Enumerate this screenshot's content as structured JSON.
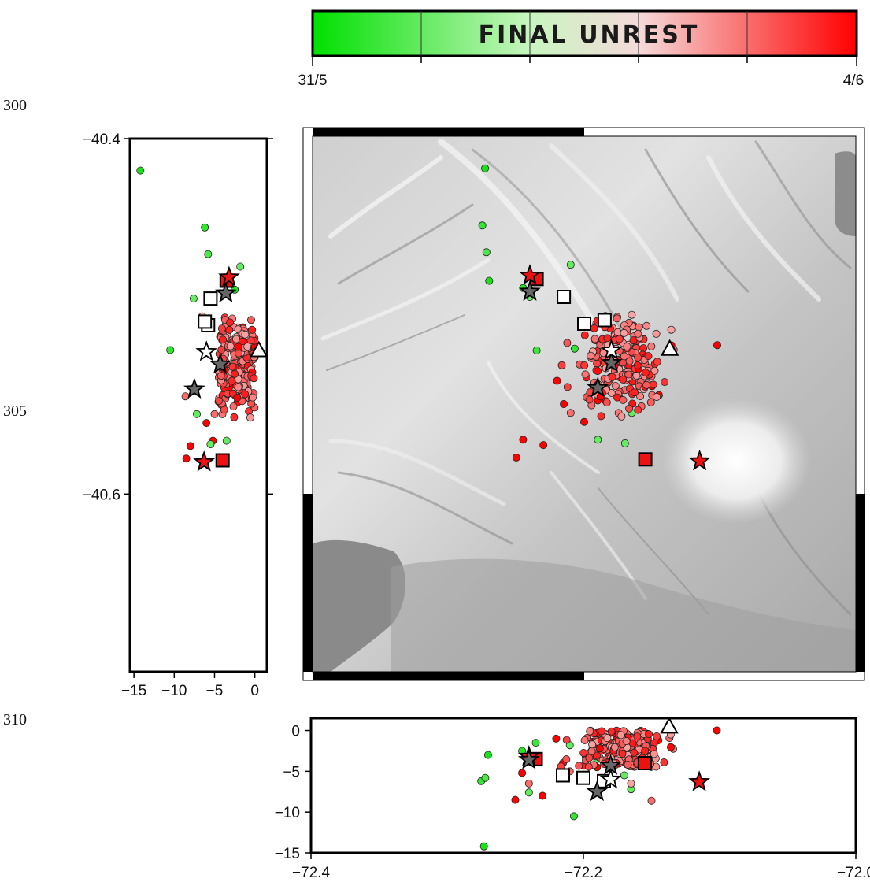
{
  "margin_numbers": [
    "300",
    "305",
    "310"
  ],
  "colorbar": {
    "title": "FINAL UNREST",
    "start_label": "31/5",
    "end_label": "4/6",
    "colors": [
      "#00e000",
      "#c8f5c0",
      "#f5dada",
      "#ff0000"
    ]
  },
  "chart_data": {
    "type": "scatter",
    "panels": {
      "map": {
        "xlim": [
          -72.4,
          -72.0
        ],
        "ylim": [
          -40.7,
          -40.4
        ],
        "basemap": "shaded relief"
      },
      "lat_section": {
        "xlim": [
          -15.5,
          1.5
        ],
        "ylim": [
          -40.7,
          -40.4
        ],
        "xticks": [
          "-15",
          "-10",
          "-5",
          "0"
        ],
        "yticks": [
          "-40.4",
          "-40.6"
        ]
      },
      "lon_section": {
        "xlim": [
          -72.4,
          -72.0
        ],
        "ylim": [
          -15,
          1.5
        ],
        "xticks": [
          "-72.4",
          "-72.2",
          "-72.0"
        ],
        "yticks": [
          "0",
          "-5",
          "-10",
          "-15"
        ]
      }
    },
    "color_scale": {
      "min": 0,
      "max": 1,
      "start": "31/5",
      "end": "4/6"
    },
    "stars": [
      {
        "lon": -72.24,
        "lat": -40.478,
        "depth": -3.2,
        "color": "#ee1111"
      },
      {
        "lon": -72.24,
        "lat": -40.487,
        "depth": -3.6,
        "color": "#666666"
      },
      {
        "lon": -72.18,
        "lat": -40.527,
        "depth": -4.3,
        "color": "#666666"
      },
      {
        "lon": -72.19,
        "lat": -40.541,
        "depth": -7.5,
        "color": "#666666"
      },
      {
        "lon": -72.115,
        "lat": -40.582,
        "depth": -6.3,
        "color": "#ee1111"
      },
      {
        "lon": -72.18,
        "lat": -40.52,
        "depth": -6.0,
        "color": "#ffffff"
      }
    ],
    "squares": [
      {
        "lon": -72.235,
        "lat": -40.48,
        "depth": -3.5,
        "color": "#ee1111"
      },
      {
        "lon": -72.215,
        "lat": -40.49,
        "depth": -5.5,
        "color": "#ffffff"
      },
      {
        "lon": -72.2,
        "lat": -40.505,
        "depth": -5.8,
        "color": "#ffffff"
      },
      {
        "lon": -72.185,
        "lat": -40.503,
        "depth": -6.2,
        "color": "#ffffff"
      },
      {
        "lon": -72.155,
        "lat": -40.581,
        "depth": -4.0,
        "color": "#ee1111"
      }
    ],
    "triangles": [
      {
        "lon": -72.137,
        "lat": -40.519,
        "depth": 0.5,
        "color": "#ffffff"
      }
    ],
    "earthquakes": [
      {
        "lon": -72.273,
        "lat": -40.418,
        "depth": -14.2,
        "t": 0.05
      },
      {
        "lon": -72.275,
        "lat": -40.45,
        "depth": -6.2,
        "t": 0.1
      },
      {
        "lon": -72.272,
        "lat": -40.465,
        "depth": -5.8,
        "t": 0.15
      },
      {
        "lon": -72.27,
        "lat": -40.481,
        "depth": -3.0,
        "t": 0.05
      },
      {
        "lon": -72.245,
        "lat": -40.485,
        "depth": -2.5,
        "t": 0.08
      },
      {
        "lon": -72.24,
        "lat": -40.49,
        "depth": -7.6,
        "t": 0.2
      },
      {
        "lon": -72.235,
        "lat": -40.52,
        "depth": -1.5,
        "t": 0.12
      },
      {
        "lon": -72.21,
        "lat": -40.472,
        "depth": -1.8,
        "t": 0.2
      },
      {
        "lon": -72.207,
        "lat": -40.519,
        "depth": -10.5,
        "t": 0.1
      },
      {
        "lon": -72.165,
        "lat": -40.555,
        "depth": -7.2,
        "t": 0.2
      },
      {
        "lon": -72.19,
        "lat": -40.57,
        "depth": -3.5,
        "t": 0.2
      },
      {
        "lon": -72.165,
        "lat": -40.5,
        "depth": -6.5,
        "t": 0.7
      },
      {
        "lon": -72.15,
        "lat": -40.545,
        "depth": -8.6,
        "t": 0.8
      },
      {
        "lon": -72.24,
        "lat": -40.73,
        "depth": -6.5,
        "t": 0.8
      },
      {
        "lon": -72.102,
        "lat": -40.517,
        "depth": 0.0,
        "t": 1.0
      },
      {
        "lon": -72.22,
        "lat": -40.537,
        "depth": -1.0,
        "t": 1.0
      },
      {
        "lon": -72.215,
        "lat": -40.55,
        "depth": -4.0,
        "t": 1.0
      },
      {
        "lon": -72.21,
        "lat": -40.555,
        "depth": -5.0,
        "t": 0.8
      },
      {
        "lon": -72.2,
        "lat": -40.56,
        "depth": -6.0,
        "t": 1.0
      },
      {
        "lon": -72.23,
        "lat": -40.573,
        "depth": -8.0,
        "t": 1.0
      },
      {
        "lon": -72.25,
        "lat": -40.58,
        "depth": -8.5,
        "t": 1.0
      },
      {
        "lon": -72.245,
        "lat": -40.57,
        "depth": -5.2,
        "t": 1.0
      },
      {
        "lon": -72.19,
        "lat": -40.548,
        "depth": -4.5,
        "t": 1.0
      },
      {
        "lon": -72.17,
        "lat": -40.572,
        "depth": -5.5,
        "t": 0.2
      },
      {
        "lon": -72.15,
        "lat": -40.54,
        "depth": -3.0,
        "t": 1.0
      },
      {
        "lon": -72.145,
        "lat": -40.545,
        "depth": -1.2,
        "t": 1.0
      }
    ],
    "cluster": {
      "center": {
        "lon": -72.172,
        "lat": -40.528
      },
      "spread": {
        "lon": 0.028,
        "lat": 0.024
      },
      "depth_range": [
        -4.5,
        0
      ],
      "count": 210,
      "t_range": [
        0.7,
        1.0
      ]
    }
  }
}
